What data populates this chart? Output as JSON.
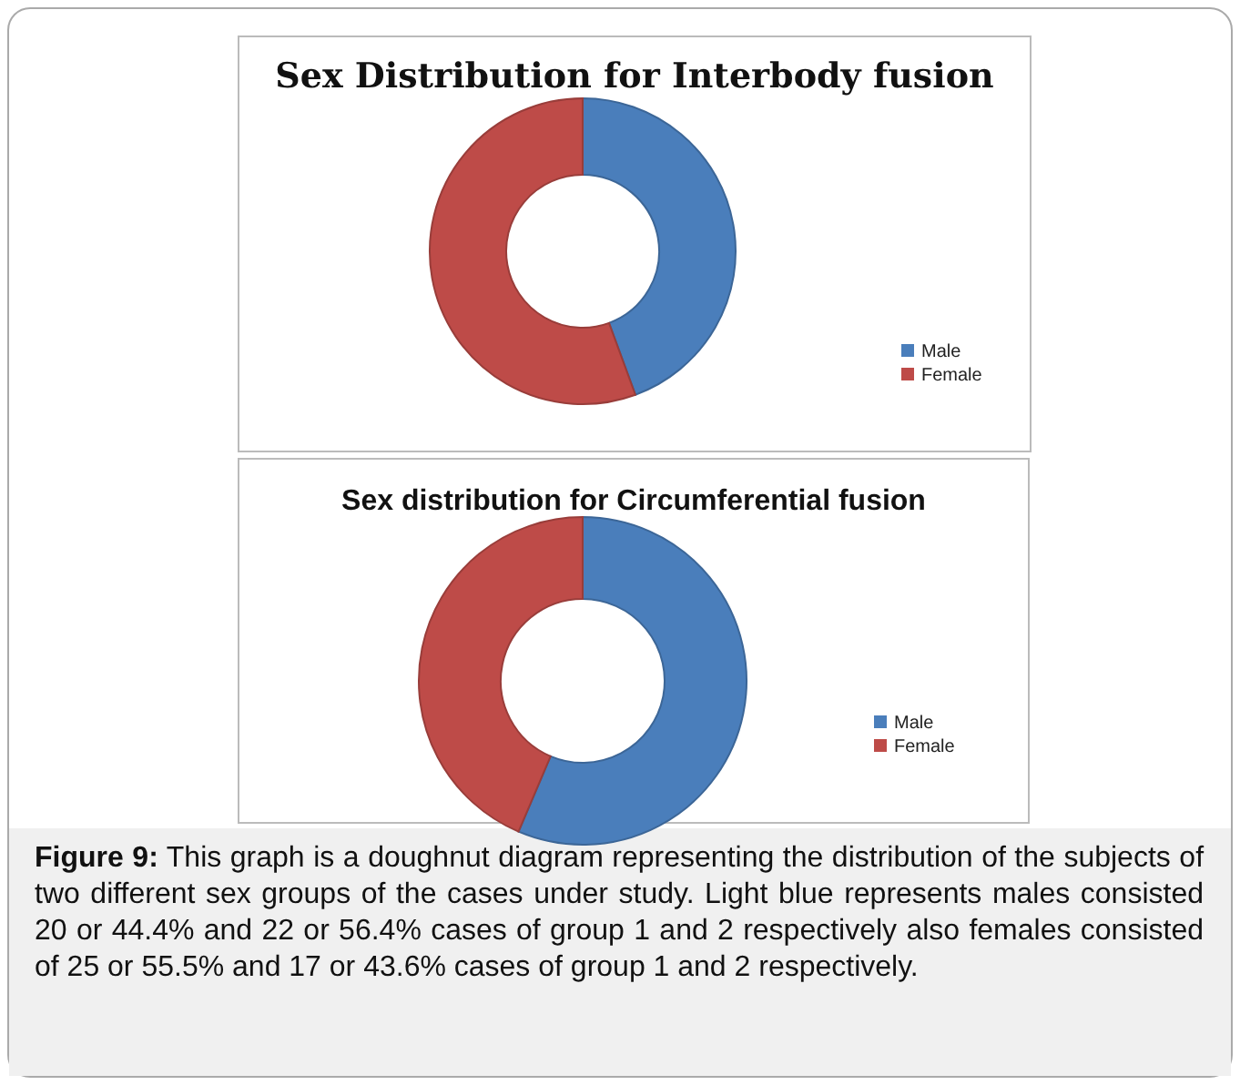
{
  "chart_data": [
    {
      "type": "donut",
      "title": "Sex Distribution for Interbody fusion",
      "categories": [
        "Male",
        "Female"
      ],
      "values": [
        44.4,
        55.6
      ],
      "colors": [
        "#4a7ebb",
        "#be4b48"
      ],
      "legend": "right"
    },
    {
      "type": "donut",
      "title": "Sex distribution for Circumferential fusion",
      "categories": [
        "Male",
        "Female"
      ],
      "values": [
        56.4,
        43.6
      ],
      "colors": [
        "#4a7ebb",
        "#be4b48"
      ],
      "legend": "right",
      "annotations": [
        "Figure 9: This graph is a doughnut diagram representing the distribution of the subjects of two different sex groups of the cases under study. Light blue represents males consisted 20 or 44.4% and 22 or 56.4% cases of group 1 and 2 respectively also females consisted of 25 or 55.5% and 17 or 43.6% cases of group 1 and 2 respectively."
      ]
    }
  ]
}
